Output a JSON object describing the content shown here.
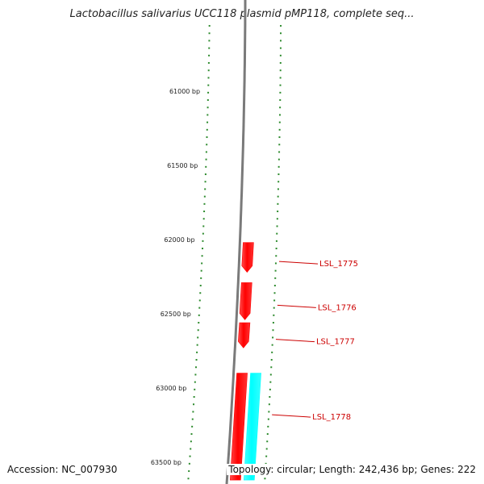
{
  "title": "Lactobacillus salivarius UCC118 plasmid pMP118, complete seq...",
  "accession": "Accession: NC_007930",
  "topology": "Topology: circular; Length: 242,436 bp; Genes: 222",
  "colors": {
    "tick": "#2e8b2e",
    "backbone": "#7a7a7a",
    "gene_forward": "#ff0000",
    "gene_reverse": "#00ffff",
    "gene_label": "#cc0000",
    "label_text": "#222222"
  },
  "ruler_labels": [
    "61000 bp",
    "61500 bp",
    "62000 bp",
    "62500 bp",
    "63000 bp",
    "63500 bp"
  ],
  "genes": [
    {
      "name": "LSL_1775",
      "start": 62020,
      "end": 62220,
      "strand": "forward",
      "labeled": true
    },
    {
      "name": "LSL_1776",
      "start": 62290,
      "end": 62540,
      "strand": "forward",
      "labeled": true
    },
    {
      "name": "LSL_1777",
      "start": 62560,
      "end": 62730,
      "strand": "forward",
      "labeled": true
    },
    {
      "name": "LSL_1778",
      "start": 62900,
      "end": 63620,
      "strand": "forward",
      "labeled": true
    },
    {
      "name": "",
      "start": 62900,
      "end": 63620,
      "strand": "reverse",
      "labeled": false
    }
  ]
}
